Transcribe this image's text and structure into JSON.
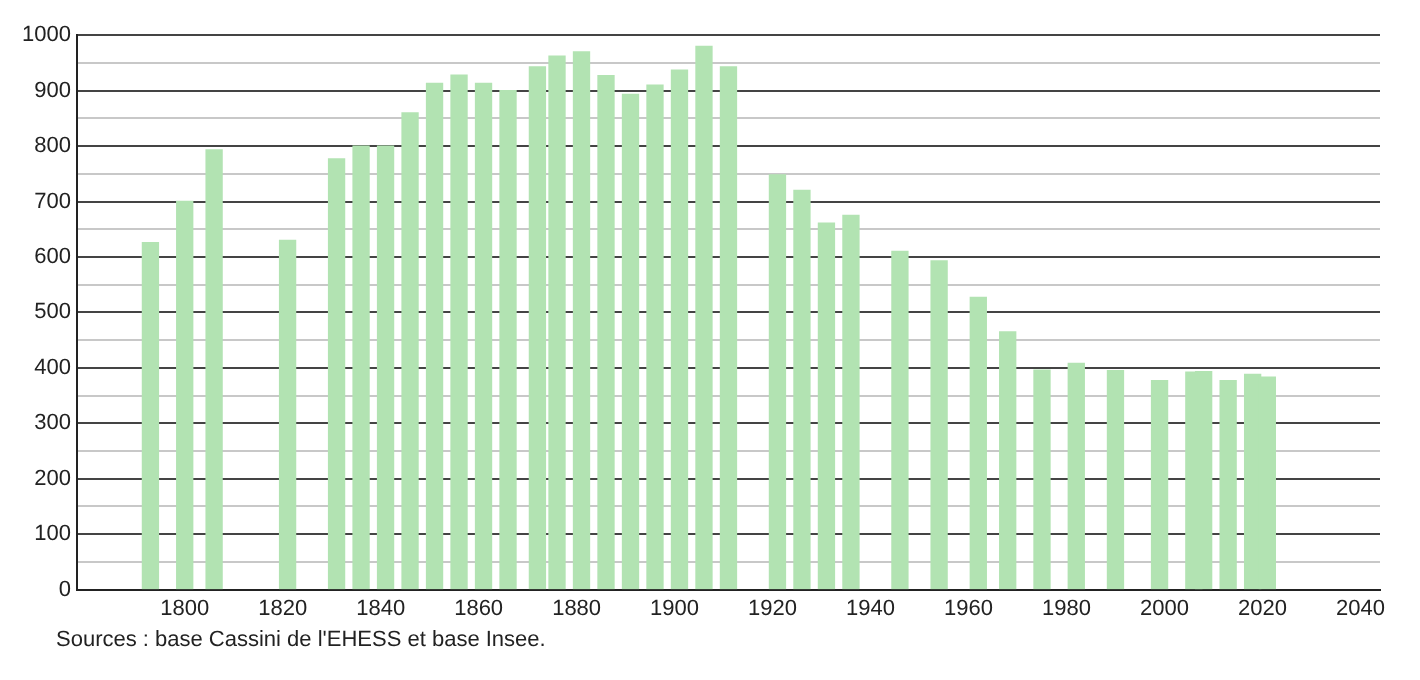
{
  "chart_data": {
    "type": "bar",
    "x": [
      1793,
      1800,
      1806,
      1821,
      1831,
      1836,
      1841,
      1846,
      1851,
      1856,
      1861,
      1866,
      1872,
      1876,
      1881,
      1886,
      1891,
      1896,
      1901,
      1906,
      1911,
      1921,
      1926,
      1931,
      1936,
      1946,
      1954,
      1962,
      1968,
      1975,
      1982,
      1990,
      1999,
      2006,
      2008,
      2013,
      2018,
      2021
    ],
    "values": [
      626,
      700,
      793,
      630,
      777,
      800,
      800,
      860,
      913,
      928,
      913,
      900,
      943,
      962,
      970,
      927,
      893,
      910,
      937,
      980,
      943,
      748,
      720,
      661,
      675,
      610,
      593,
      527,
      465,
      396,
      408,
      395,
      377,
      392,
      393,
      377,
      388,
      383
    ],
    "color": "#b2e3b2",
    "xlim": [
      1778,
      2044
    ],
    "xticks": [
      1800,
      1820,
      1840,
      1860,
      1880,
      1900,
      1920,
      1940,
      1960,
      1980,
      2000,
      2020,
      2040
    ],
    "ylim": [
      0,
      1000
    ],
    "yticks": [
      0,
      {
        "value": 50,
        "label": null
      },
      100,
      {
        "value": 150,
        "label": null
      },
      200,
      {
        "value": 250,
        "label": null
      },
      300,
      {
        "value": 350,
        "label": null
      },
      400,
      {
        "value": 450,
        "label": null
      },
      500,
      {
        "value": 550,
        "label": null
      },
      600,
      {
        "value": 650,
        "label": null
      },
      700,
      {
        "value": 750,
        "label": null
      },
      800,
      {
        "value": 850,
        "label": null
      },
      900,
      {
        "value": 950,
        "label": null
      },
      1000
    ],
    "grid": "y",
    "legend": false,
    "annotations": [
      "Sources : base Cassini de l'EHESS et base Insee."
    ]
  }
}
